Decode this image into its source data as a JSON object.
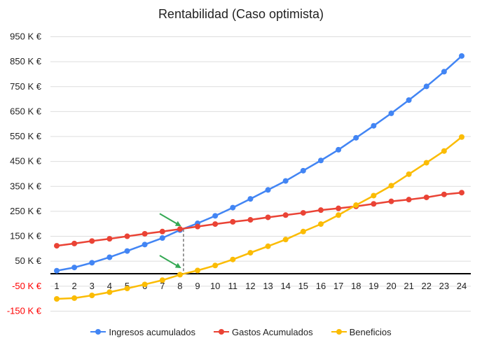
{
  "chart_data": {
    "type": "line",
    "title": "Rentabilidad (Caso optimista)",
    "xlabel": "",
    "ylabel": "",
    "x": [
      1,
      2,
      3,
      4,
      5,
      6,
      7,
      8,
      9,
      10,
      11,
      12,
      13,
      14,
      15,
      16,
      17,
      18,
      19,
      20,
      21,
      22,
      23,
      24
    ],
    "ylim": [
      -175,
      1000
    ],
    "y_ticks": [
      {
        "value": 950,
        "label": "950 K €"
      },
      {
        "value": 850,
        "label": "850 K €"
      },
      {
        "value": 750,
        "label": "750 K €"
      },
      {
        "value": 650,
        "label": "650 K €"
      },
      {
        "value": 550,
        "label": "550 K €"
      },
      {
        "value": 450,
        "label": "450 K €"
      },
      {
        "value": 350,
        "label": "350 K €"
      },
      {
        "value": 250,
        "label": "250 K €"
      },
      {
        "value": 150,
        "label": "150 K €"
      },
      {
        "value": 50,
        "label": "50 K €"
      },
      {
        "value": -50,
        "label": "-50 K €",
        "color": "#ff0000"
      },
      {
        "value": -150,
        "label": "-150 K €",
        "color": "#ff0000"
      }
    ],
    "series": [
      {
        "name": "Ingresos acumulados",
        "color": "#4285f4",
        "values": [
          12,
          25,
          44,
          66,
          91,
          117,
          143,
          175,
          202,
          232,
          265,
          300,
          336,
          372,
          413,
          454,
          497,
          545,
          593,
          643,
          696,
          751,
          810,
          873
        ]
      },
      {
        "name": "Gastos Acumulados",
        "color": "#ea4335",
        "values": [
          112,
          121,
          131,
          140,
          150,
          160,
          169,
          179,
          189,
          199,
          208,
          216,
          226,
          235,
          244,
          255,
          262,
          270,
          280,
          290,
          297,
          306,
          318,
          325
        ]
      },
      {
        "name": "Beneficios",
        "color": "#fbbc04",
        "values": [
          -101,
          -98,
          -87,
          -74,
          -59,
          -43,
          -26,
          -4,
          13,
          33,
          57,
          84,
          110,
          137,
          169,
          199,
          235,
          275,
          313,
          353,
          399,
          445,
          492,
          548
        ]
      }
    ],
    "grid": true,
    "legend": "bottom",
    "annotations": {
      "break_even_x": 8.2,
      "arrow_color": "#34a853"
    }
  }
}
